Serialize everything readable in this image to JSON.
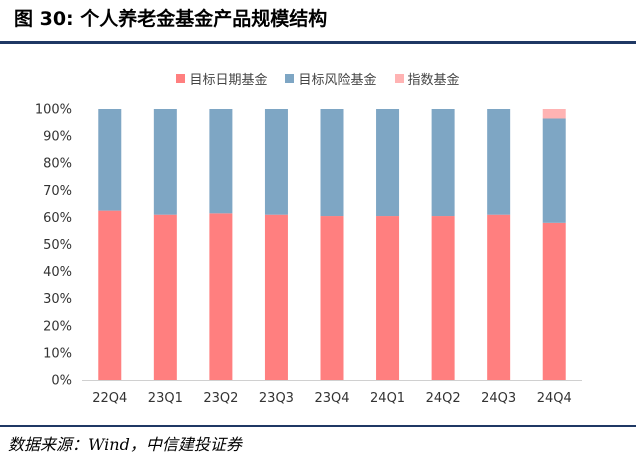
{
  "figure": {
    "title": "图 30: 个人养老金基金产品规模结构",
    "source": "数据来源：Wind，中信建投证券"
  },
  "chart_data": {
    "type": "bar",
    "stacked": true,
    "normalized": true,
    "categories": [
      "22Q4",
      "23Q1",
      "23Q2",
      "23Q3",
      "23Q4",
      "24Q1",
      "24Q2",
      "24Q3",
      "24Q4"
    ],
    "series": [
      {
        "name": "目标日期基金",
        "color": "#ff7f7f",
        "values": [
          62.5,
          61.0,
          61.5,
          61.0,
          60.5,
          60.5,
          60.5,
          61.0,
          58.0
        ]
      },
      {
        "name": "目标风险基金",
        "color": "#7ea6c4",
        "values": [
          37.5,
          39.0,
          38.5,
          39.0,
          39.5,
          39.5,
          39.5,
          39.0,
          38.5
        ]
      },
      {
        "name": "指数基金",
        "color": "#ffb3b3",
        "values": [
          0,
          0,
          0,
          0,
          0,
          0,
          0,
          0,
          3.5
        ]
      }
    ],
    "yticks": [
      "0%",
      "10%",
      "20%",
      "30%",
      "40%",
      "50%",
      "60%",
      "70%",
      "80%",
      "90%",
      "100%"
    ],
    "ylim": [
      0,
      100
    ],
    "legend_position": "top-center",
    "grid": false
  }
}
